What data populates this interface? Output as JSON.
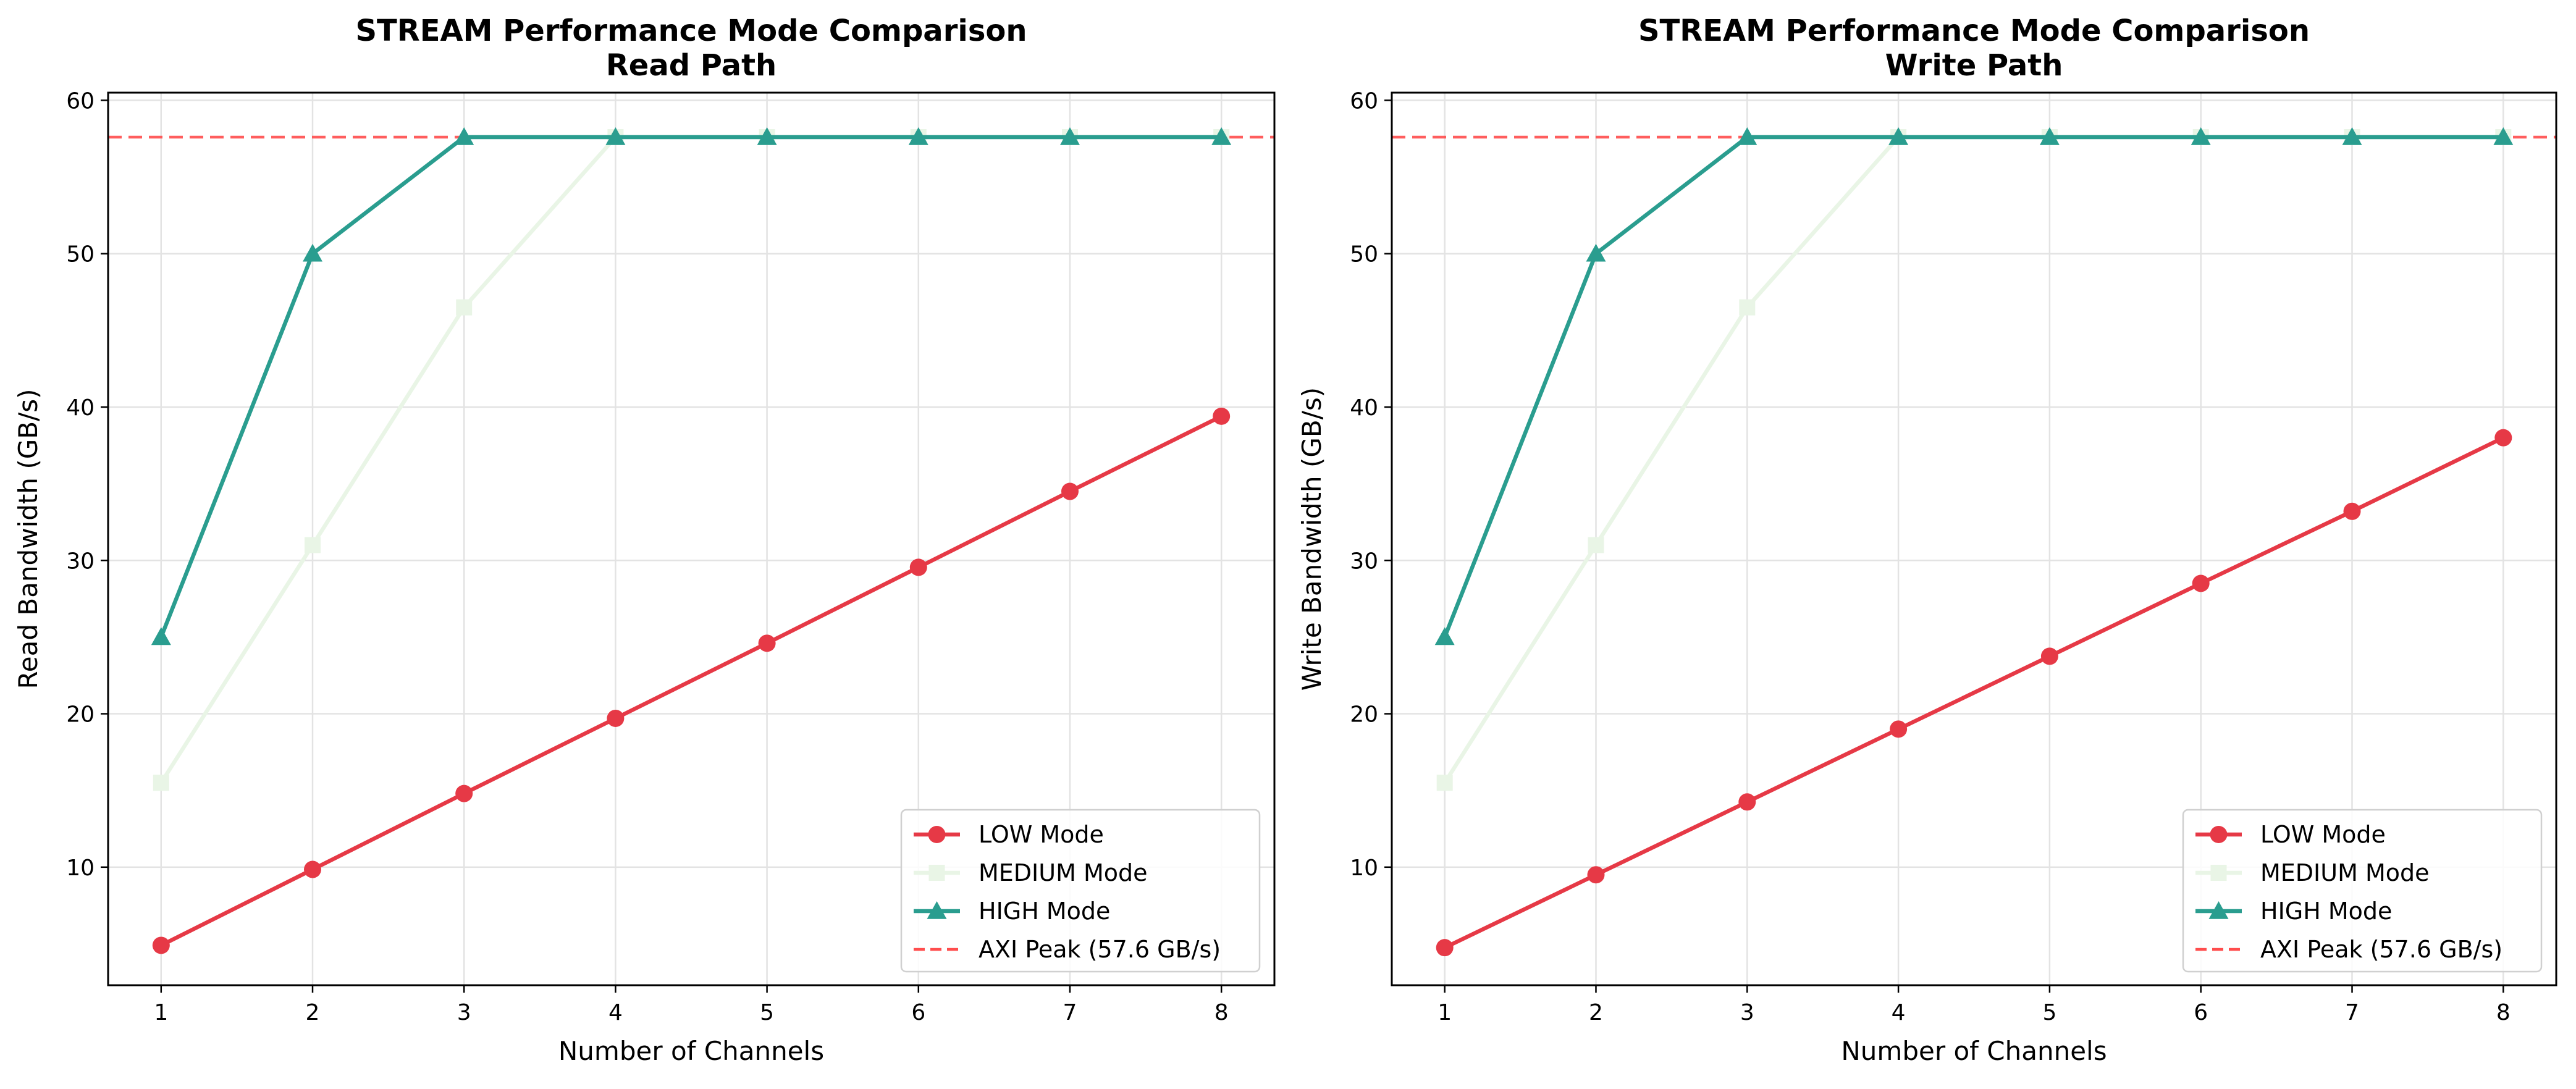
{
  "chart_data": [
    {
      "type": "line",
      "title": "STREAM Performance Mode Comparison",
      "subtitle": "Read Path",
      "xlabel": "Number of Channels",
      "ylabel": "Read Bandwidth (GB/s)",
      "x": [
        1,
        2,
        3,
        4,
        5,
        6,
        7,
        8
      ],
      "xticks": [
        "1",
        "2",
        "3",
        "4",
        "5",
        "6",
        "7",
        "8"
      ],
      "yticks": [
        "10",
        "20",
        "30",
        "40",
        "50",
        "60"
      ],
      "xlim": [
        0.65,
        8.35
      ],
      "ylim": [
        2.3,
        60.5
      ],
      "grid": true,
      "legend_position": "lower-right",
      "series": [
        {
          "name": "LOW Mode",
          "marker": "circle",
          "color": "#e63946",
          "values": [
            4.9,
            9.85,
            14.8,
            19.7,
            24.6,
            29.55,
            34.5,
            39.4
          ]
        },
        {
          "name": "MEDIUM Mode",
          "marker": "square",
          "color": "#e9f5e6",
          "values": [
            15.5,
            31.0,
            46.5,
            57.6,
            57.6,
            57.6,
            57.6,
            57.6
          ]
        },
        {
          "name": "HIGH Mode",
          "marker": "triangle",
          "color": "#2a9d8f",
          "values": [
            25.0,
            50.0,
            57.6,
            57.6,
            57.6,
            57.6,
            57.6,
            57.6
          ]
        }
      ],
      "reference_line": {
        "name": "AXI Peak (57.6 GB/s)",
        "value": 57.6,
        "color": "#ff4d4d"
      }
    },
    {
      "type": "line",
      "title": "STREAM Performance Mode Comparison",
      "subtitle": "Write Path",
      "xlabel": "Number of Channels",
      "ylabel": "Write Bandwidth (GB/s)",
      "x": [
        1,
        2,
        3,
        4,
        5,
        6,
        7,
        8
      ],
      "xticks": [
        "1",
        "2",
        "3",
        "4",
        "5",
        "6",
        "7",
        "8"
      ],
      "yticks": [
        "10",
        "20",
        "30",
        "40",
        "50",
        "60"
      ],
      "xlim": [
        0.65,
        8.35
      ],
      "ylim": [
        2.3,
        60.5
      ],
      "grid": true,
      "legend_position": "lower-right",
      "series": [
        {
          "name": "LOW Mode",
          "marker": "circle",
          "color": "#e63946",
          "values": [
            4.75,
            9.5,
            14.25,
            19.0,
            23.75,
            28.5,
            33.2,
            38.0
          ]
        },
        {
          "name": "MEDIUM Mode",
          "marker": "square",
          "color": "#e9f5e6",
          "values": [
            15.5,
            31.0,
            46.5,
            57.6,
            57.6,
            57.6,
            57.6,
            57.6
          ]
        },
        {
          "name": "HIGH Mode",
          "marker": "triangle",
          "color": "#2a9d8f",
          "values": [
            25.0,
            50.0,
            57.6,
            57.6,
            57.6,
            57.6,
            57.6,
            57.6
          ]
        }
      ],
      "reference_line": {
        "name": "AXI Peak (57.6 GB/s)",
        "value": 57.6,
        "color": "#ff4d4d"
      }
    }
  ]
}
